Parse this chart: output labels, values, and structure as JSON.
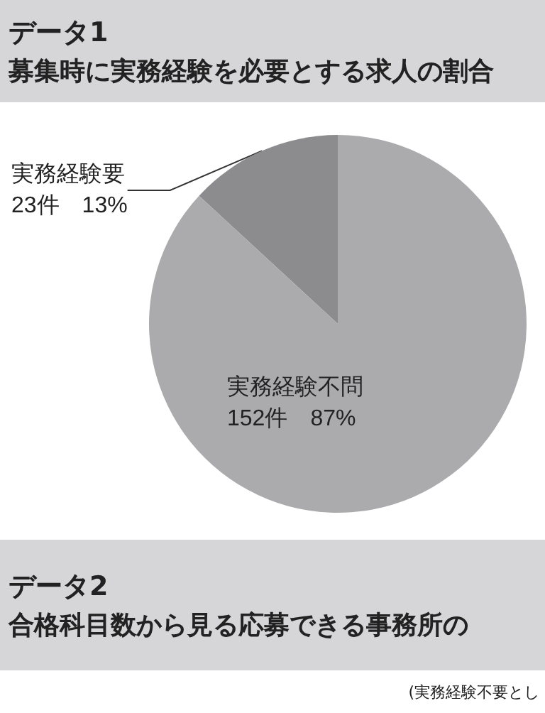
{
  "chart_data": {
    "type": "pie",
    "title": "データ1",
    "subtitle": "募集時に実務経験を必要とする求人の割合",
    "categories": [
      "実務経験要",
      "実務経験不問"
    ],
    "values": [
      23,
      152
    ],
    "colors": [
      "#8c8c8e",
      "#ababad"
    ],
    "value_labels": [
      "23件　13%",
      "152件　87%"
    ],
    "annotations": [
      "データ2",
      "合格科目数から見る応募できる事務所の",
      "(実務経験不要とし"
    ]
  }
}
